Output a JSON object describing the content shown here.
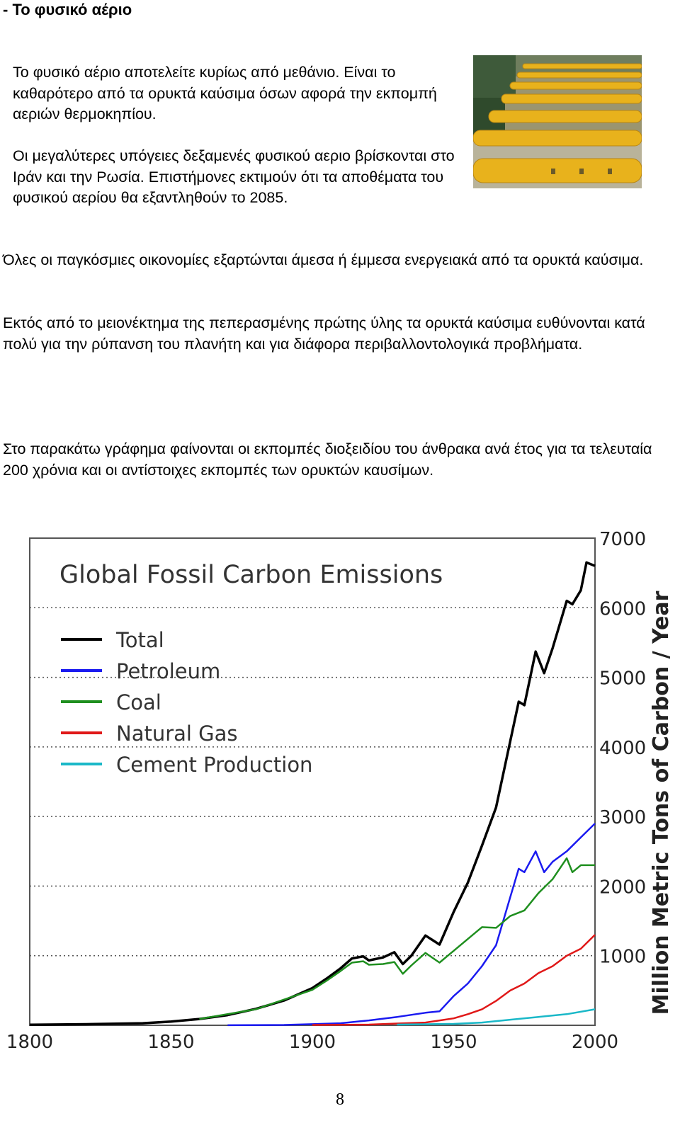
{
  "heading": "- Το φυσικό αέριο",
  "paragraphs": {
    "p1": "Το φυσικό αέριο αποτελείτε κυρίως από μεθάνιο. Είναι το καθαρότερο από τα ορυκτά καύσιμα όσων αφορά την εκπομπή αεριών θερμοκηπίου.",
    "p2": "Οι μεγαλύτερες υπόγειες δεξαμενές φυσικού αεριο βρίσκονται στο Ιράν και την Ρωσία. Επιστήμονες εκτιμούν ότι τα αποθέματα του φυσικού αερίου θα εξαντληθούν το 2085.",
    "p3": "Όλες οι παγκόσμιες οικονομίες εξαρτώνται άμεσα ή έμμεσα ενεργειακά από τα ορυκτά καύσιμα.",
    "p4": "Εκτός από το μειονέκτημα της πεπερασμένης πρώτης ύλης τα ορυκτά καύσιμα ευθύνονται κατά πολύ για την ρύπανση του πλανήτη και για διάφορα περιβαλλοντολογικά προβλήματα.",
    "p5": "Στο παρακάτω γράφημα φαίνονται οι εκπομπές διοξειδίου του άνθρακα ανά έτος για τα τελευταία 200 χρόνια και οι αντίστοιχες εκπομπές των ορυκτών καυσίμων."
  },
  "photo": {
    "icon": "gas-pipelines-photo"
  },
  "page_number": "8",
  "colors": {
    "total": "#000000",
    "petroleum": "#1a1af0",
    "coal": "#1f8f1f",
    "natural_gas": "#e01818",
    "cement": "#1ab8c8"
  },
  "chart_data": {
    "type": "line",
    "title": "Global Fossil Carbon Emissions",
    "ylabel": "Million Metric Tons of Carbon / Year",
    "xlabel": "",
    "xlim": [
      1800,
      2000
    ],
    "ylim": [
      0,
      7000
    ],
    "x_ticks": [
      "1800",
      "1850",
      "1900",
      "1950",
      "2000"
    ],
    "y_ticks": [
      "1000",
      "2000",
      "3000",
      "4000",
      "5000",
      "6000",
      "7000"
    ],
    "grid": "horizontal dotted",
    "legend": "top-left",
    "series": [
      {
        "name": "Total",
        "color": "#000000",
        "x": [
          1800,
          1820,
          1840,
          1850,
          1860,
          1870,
          1880,
          1890,
          1900,
          1905,
          1910,
          1914,
          1918,
          1920,
          1925,
          1929,
          1932,
          1935,
          1940,
          1945,
          1950,
          1955,
          1960,
          1965,
          1970,
          1973,
          1975,
          1979,
          1982,
          1985,
          1990,
          1992,
          1995,
          1997,
          2000
        ],
        "y": [
          8,
          15,
          30,
          54,
          91,
          147,
          236,
          356,
          534,
          670,
          819,
          960,
          990,
          932,
          975,
          1050,
          880,
          1000,
          1290,
          1160,
          1630,
          2050,
          2580,
          3130,
          4080,
          4650,
          4600,
          5370,
          5060,
          5420,
          6100,
          6050,
          6250,
          6650,
          6600
        ]
      },
      {
        "name": "Petroleum",
        "color": "#1a1af0",
        "x": [
          1870,
          1890,
          1900,
          1910,
          1920,
          1930,
          1940,
          1945,
          1950,
          1955,
          1960,
          1965,
          1970,
          1973,
          1975,
          1979,
          1982,
          1985,
          1990,
          1995,
          2000
        ],
        "y": [
          1,
          5,
          16,
          30,
          70,
          120,
          180,
          200,
          420,
          600,
          850,
          1150,
          1840,
          2250,
          2200,
          2500,
          2200,
          2350,
          2500,
          2700,
          2900
        ]
      },
      {
        "name": "Coal",
        "color": "#1f8f1f",
        "x": [
          1860,
          1880,
          1900,
          1905,
          1910,
          1914,
          1918,
          1920,
          1925,
          1929,
          1932,
          1935,
          1940,
          1945,
          1950,
          1955,
          1960,
          1965,
          1970,
          1975,
          1980,
          1985,
          1990,
          1992,
          1995,
          2000
        ],
        "y": [
          91,
          230,
          510,
          640,
          780,
          900,
          920,
          870,
          880,
          910,
          740,
          860,
          1040,
          900,
          1070,
          1240,
          1410,
          1400,
          1570,
          1650,
          1900,
          2100,
          2400,
          2200,
          2300,
          2300
        ]
      },
      {
        "name": "Natural Gas",
        "color": "#e01818",
        "x": [
          1900,
          1920,
          1930,
          1940,
          1950,
          1955,
          1960,
          1965,
          1970,
          1975,
          1980,
          1985,
          1990,
          1995,
          2000
        ],
        "y": [
          5,
          10,
          25,
          40,
          100,
          160,
          230,
          350,
          500,
          600,
          750,
          850,
          1000,
          1100,
          1300
        ]
      },
      {
        "name": "Cement Production",
        "color": "#1ab8c8",
        "x": [
          1930,
          1950,
          1960,
          1970,
          1980,
          1990,
          2000
        ],
        "y": [
          10,
          20,
          40,
          80,
          120,
          160,
          230
        ]
      }
    ]
  }
}
